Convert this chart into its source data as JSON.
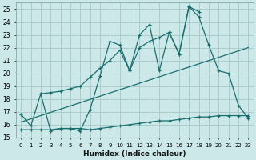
{
  "xlabel": "Humidex (Indice chaleur)",
  "bg_color": "#cce8e8",
  "grid_color": "#aacccc",
  "line_color": "#1a6e6e",
  "xlim": [
    -0.5,
    23.5
  ],
  "ylim": [
    15,
    25.5
  ],
  "yticks": [
    15,
    16,
    17,
    18,
    19,
    20,
    21,
    22,
    23,
    24,
    25
  ],
  "xticks": [
    0,
    1,
    2,
    3,
    4,
    5,
    6,
    7,
    8,
    9,
    10,
    11,
    12,
    13,
    14,
    15,
    16,
    17,
    18,
    19,
    20,
    21,
    22,
    23
  ],
  "series": [
    {
      "x": [
        0,
        1,
        2,
        3,
        4,
        5,
        6,
        7,
        8,
        9,
        10,
        11,
        12,
        13,
        14,
        15,
        16,
        17,
        18
      ],
      "y": [
        16.8,
        15.9,
        18.4,
        15.5,
        15.7,
        15.7,
        15.5,
        17.2,
        19.8,
        22.5,
        22.2,
        20.2,
        23.0,
        23.8,
        20.2,
        23.2,
        21.5,
        25.2,
        24.8
      ]
    },
    {
      "x": [
        2,
        3,
        4,
        5,
        6,
        7,
        8,
        9,
        10,
        11,
        12,
        13,
        14,
        15,
        16,
        17,
        18,
        19,
        20,
        21,
        22,
        23
      ],
      "y": [
        18.4,
        18.5,
        18.6,
        18.8,
        19.0,
        19.7,
        20.4,
        21.0,
        21.8,
        20.2,
        22.0,
        22.5,
        22.8,
        23.2,
        21.5,
        25.2,
        24.4,
        22.2,
        20.2,
        20.0,
        17.5,
        16.5
      ]
    },
    {
      "x": [
        0,
        1,
        2,
        3,
        4,
        5,
        6,
        7,
        8,
        9,
        10,
        11,
        12,
        13,
        14,
        15,
        16,
        17,
        18,
        19,
        20,
        21,
        22,
        23
      ],
      "y": [
        15.6,
        15.6,
        15.6,
        15.6,
        15.7,
        15.7,
        15.7,
        15.6,
        15.7,
        15.8,
        15.9,
        16.0,
        16.1,
        16.2,
        16.3,
        16.3,
        16.4,
        16.5,
        16.6,
        16.6,
        16.7,
        16.7,
        16.7,
        16.7
      ]
    },
    {
      "x": [
        0,
        23
      ],
      "y": [
        16.2,
        22.0
      ]
    }
  ]
}
